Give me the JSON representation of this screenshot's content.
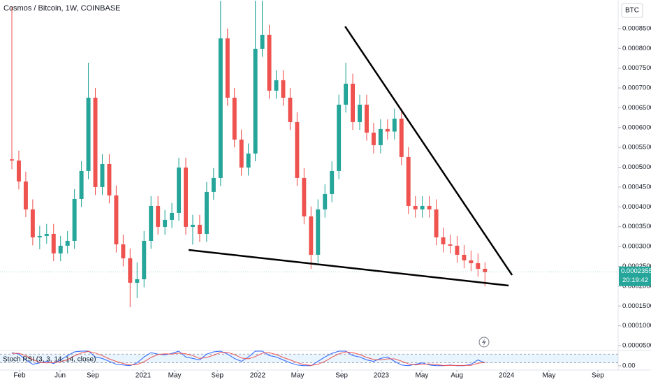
{
  "chart_data": {
    "type": "candlestick",
    "title": "Cosmos / Bitcoin, 1W, COINBASE",
    "currency": "BTC",
    "countdown": "20:19:42",
    "up_color": "#26a69a",
    "down_color": "#ef5350",
    "x": [
      0,
      3,
      6,
      9,
      12,
      15,
      18,
      21,
      24,
      27,
      30,
      33,
      36,
      39,
      42,
      45,
      48,
      51,
      54,
      57,
      60,
      63,
      66,
      69,
      72,
      75,
      78,
      81,
      84,
      87,
      90,
      93,
      96,
      99,
      102,
      105,
      108,
      111,
      114,
      117,
      120,
      123,
      126,
      129,
      132,
      135,
      138,
      141,
      144,
      147,
      150,
      153,
      156,
      159,
      162,
      165,
      168,
      171,
      174,
      177,
      180,
      183,
      186,
      189,
      192,
      195,
      198,
      201,
      204
    ],
    "open": [
      0.00052,
      0.000517,
      0.0004641,
      0.0003936,
      0.0003231,
      0.0003267,
      0.0003319,
      0.0002826,
      0.000302,
      0.0003143,
      0.00042,
      0.0004905,
      0.0006755,
      0.00045,
      0.0005081,
      0.0004289,
      0.0003055,
      0.0002703,
      0.0002086,
      0.0002174,
      0.0003143,
      0.0004024,
      0.0003496,
      0.0003672,
      0.0003848,
      0.0004993,
      0.0003496,
      0.0003548,
      0.0003319,
      0.0004377,
      0.0004729,
      0.0008253,
      0.0006755,
      0.0005698,
      0.0004993,
      0.0005346,
      0.0007989,
      0.0008341,
      0.0006932,
      0.0007196,
      0.0006755,
      0.0006139,
      0.0004729,
      0.000376,
      0.0002791,
      0.0003936,
      0.0004324,
      0.0004905,
      0.0006579,
      0.0007108,
      0.0006139,
      0.0006579,
      0.0005874,
      0.0005557,
      0.0005963,
      0.00059,
      0.0006227,
      0.0005258,
      0.0004024,
      0.0003936,
      0.0004024,
      0.0003936,
      0.0003231,
      0.0003055,
      0.000302,
      0.0002791,
      0.000265,
      0.0002579,
      0.0002438
    ],
    "high": [
      0.0009046,
      0.000542,
      0.000489,
      0.000419,
      0.000352,
      0.000357,
      0.000357,
      0.000327,
      0.000339,
      0.000445,
      0.000515,
      0.0007637,
      0.0007,
      0.000533,
      0.000533,
      0.000454,
      0.00033,
      0.000295,
      0.00026,
      0.000339,
      0.000427,
      0.000427,
      0.000392,
      0.00041,
      0.000524,
      0.000524,
      0.00038,
      0.00038,
      0.000463,
      0.000498,
      0.00092,
      0.00085,
      0.0007,
      0.000595,
      0.00056,
      0.00092,
      0.00092,
      0.000859,
      0.000745,
      0.000745,
      0.0007,
      0.000639,
      0.000498,
      0.000401,
      0.000419,
      0.000457,
      0.000515,
      0.000683,
      0.0007637,
      0.000736,
      0.000683,
      0.000683,
      0.000612,
      0.000621,
      0.000621,
      0.000648,
      0.000648,
      0.000551,
      0.000427,
      0.000427,
      0.000427,
      0.000419,
      0.000348,
      0.00033,
      0.000327,
      0.000304,
      0.00029,
      0.000283,
      0.00026
    ],
    "low": [
      0.000495,
      0.000444,
      0.000374,
      0.000303,
      0.000293,
      0.000307,
      0.000263,
      0.000263,
      0.000282,
      0.000294,
      0.0004,
      0.00047,
      0.00043,
      0.00043,
      0.000409,
      0.000285,
      0.00025,
      0.0001469,
      0.00017,
      0.000197,
      0.000294,
      0.00033,
      0.00033,
      0.000347,
      0.000365,
      0.00033,
      0.000305,
      0.000312,
      0.000312,
      0.000418,
      0.000453,
      0.000655,
      0.00055,
      0.000479,
      0.000479,
      0.000515,
      0.000779,
      0.000673,
      0.000673,
      0.000655,
      0.000594,
      0.000453,
      0.000356,
      0.0002438,
      0.000259,
      0.000373,
      0.000412,
      0.00047,
      0.000638,
      0.000594,
      0.000594,
      0.000567,
      0.000535,
      0.000535,
      0.00057,
      0.00057,
      0.000505,
      0.000382,
      0.000373,
      0.000373,
      0.000373,
      0.000303,
      0.000285,
      0.000282,
      0.000259,
      0.000245,
      0.000238,
      0.000224,
      0.0001998
    ],
    "close": [
      0.000517,
      0.0004641,
      0.0003936,
      0.0003231,
      0.0003267,
      0.0003319,
      0.0002826,
      0.000302,
      0.0003143,
      0.00042,
      0.0004905,
      0.0006755,
      0.00045,
      0.0005081,
      0.0004289,
      0.0003055,
      0.0002703,
      0.0002086,
      0.0002174,
      0.0003143,
      0.0004024,
      0.0003496,
      0.0003672,
      0.0003848,
      0.0004993,
      0.0003496,
      0.0003548,
      0.0003319,
      0.0004377,
      0.0004729,
      0.0008253,
      0.0006755,
      0.0005698,
      0.0004993,
      0.0005346,
      0.0007989,
      0.0008341,
      0.0006932,
      0.0007196,
      0.0006755,
      0.0006139,
      0.0004729,
      0.000376,
      0.0002791,
      0.0003936,
      0.0004324,
      0.0004905,
      0.0006579,
      0.0007108,
      0.0006139,
      0.0006579,
      0.0005874,
      0.0005557,
      0.0005963,
      0.00059,
      0.0006227,
      0.0005258,
      0.0004024,
      0.0003936,
      0.0004024,
      0.0003936,
      0.0003231,
      0.0003055,
      0.000302,
      0.0002791,
      0.000265,
      0.0002579,
      0.0002438,
      0.0002355
    ],
    "xlim": [
      -5.12,
      261.45
    ],
    "xticks": [
      {
        "value": 3.3,
        "label": "Feb"
      },
      {
        "value": 20.8,
        "label": "Jun"
      },
      {
        "value": 34.9,
        "label": "Sep"
      },
      {
        "value": 56.6,
        "label": "2021"
      },
      {
        "value": 70.2,
        "label": "May"
      },
      {
        "value": 88.6,
        "label": "Sep"
      },
      {
        "value": 106,
        "label": "2022"
      },
      {
        "value": 123.2,
        "label": "May"
      },
      {
        "value": 142.2,
        "label": "Sep"
      },
      {
        "value": 159.3,
        "label": "2023"
      },
      {
        "value": 176.8,
        "label": "May"
      },
      {
        "value": 191.9,
        "label": "Aug"
      },
      {
        "value": 213.3,
        "label": "2024"
      },
      {
        "value": 231.6,
        "label": "May"
      },
      {
        "value": 252.7,
        "label": "Sep"
      }
    ],
    "ylim": [
      4.12e-05,
      0.000922
    ],
    "yticks": [
      {
        "value": 5e-05,
        "label": "0.0000500"
      },
      {
        "value": 0.0001,
        "label": "0.0001000"
      },
      {
        "value": 0.00015,
        "label": "0.0001500"
      },
      {
        "value": 0.0002,
        "label": "0.0002000"
      },
      {
        "value": 0.00025,
        "label": "0.0002500"
      },
      {
        "value": 0.0003,
        "label": "0.0003000"
      },
      {
        "value": 0.00035,
        "label": "0.0003500"
      },
      {
        "value": 0.0004,
        "label": "0.0004000"
      },
      {
        "value": 0.00045,
        "label": "0.0004500"
      },
      {
        "value": 0.0005,
        "label": "0.0005000"
      },
      {
        "value": 0.00055,
        "label": "0.0005500"
      },
      {
        "value": 0.0006,
        "label": "0.0006000"
      },
      {
        "value": 0.00065,
        "label": "0.0006500"
      },
      {
        "value": 0.0007,
        "label": "0.0007000"
      },
      {
        "value": 0.00075,
        "label": "0.0007500"
      },
      {
        "value": 0.0008,
        "label": "0.0008000"
      },
      {
        "value": 0.00085,
        "label": "0.0008500"
      }
    ],
    "trendlines": [
      {
        "x": [
          143.7,
          215.7
        ],
        "y": [
          0.0008553,
          0.000228
        ]
      },
      {
        "x": [
          76.2,
          214.2
        ],
        "y": [
          0.0002914,
          0.0002015
        ]
      }
    ],
    "stoch_rsi": {
      "title": "Stoch RSI (3, 3, 14, 14, close)",
      "ylim": [
        -20,
        100
      ],
      "yticks": [
        {
          "value": 0,
          "label": "0.00"
        }
      ],
      "bands": [
        20,
        80
      ],
      "k_color": "#2962ff",
      "d_color": "#ef5350",
      "k": [
        90,
        80,
        40,
        10,
        20,
        30,
        15,
        40,
        70,
        95,
        100,
        100,
        60,
        50,
        30,
        10,
        5,
        0,
        20,
        60,
        90,
        80,
        75,
        85,
        100,
        60,
        50,
        40,
        80,
        95,
        100,
        80,
        50,
        30,
        60,
        100,
        100,
        70,
        60,
        40,
        20,
        5,
        0,
        0,
        30,
        60,
        85,
        100,
        100,
        70,
        60,
        40,
        30,
        50,
        60,
        30,
        5,
        0,
        10,
        20,
        5,
        0,
        0,
        5,
        0,
        0,
        10,
        40,
        20
      ],
      "d": [
        85,
        85,
        70,
        43,
        23,
        20,
        22,
        28,
        42,
        68,
        88,
        98,
        87,
        70,
        47,
        30,
        15,
        5,
        8,
        27,
        57,
        77,
        82,
        80,
        87,
        82,
        70,
        50,
        57,
        72,
        92,
        92,
        77,
        53,
        47,
        63,
        87,
        90,
        77,
        57,
        40,
        22,
        8,
        2,
        10,
        30,
        58,
        82,
        95,
        90,
        77,
        57,
        43,
        40,
        47,
        47,
        32,
        12,
        5,
        10,
        12,
        8,
        2,
        2,
        2,
        2,
        3,
        17,
        23
      ]
    }
  }
}
